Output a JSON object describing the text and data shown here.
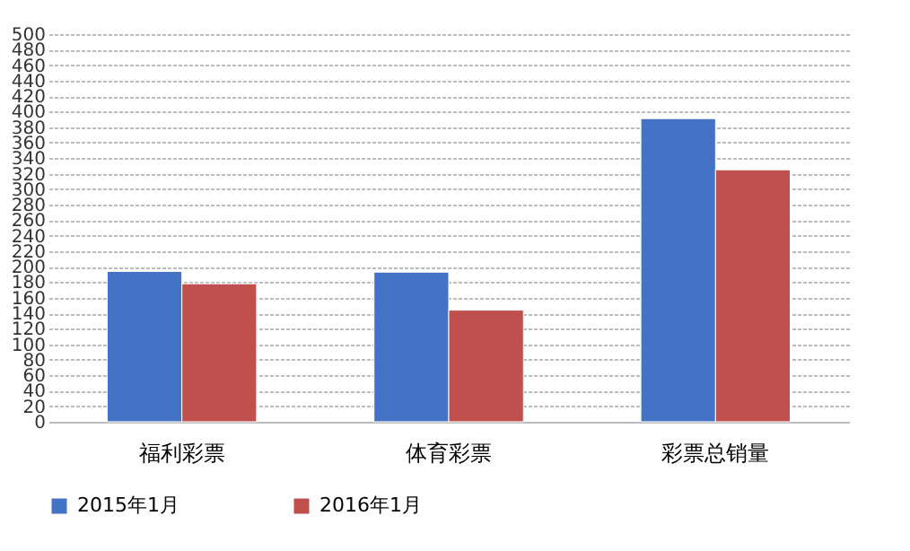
{
  "chart_data": {
    "type": "bar",
    "categories": [
      "福利彩票",
      "体育彩票",
      "彩票总销量"
    ],
    "series": [
      {
        "name": "2015年1月",
        "color": "#4472c4",
        "values": [
          194,
          193,
          391
        ]
      },
      {
        "name": "2016年1月",
        "color": "#c0504d",
        "values": [
          178,
          144,
          325
        ]
      }
    ],
    "ylim": [
      0,
      500
    ],
    "yticks": [
      0,
      20,
      40,
      60,
      80,
      100,
      120,
      140,
      160,
      180,
      200,
      220,
      240,
      260,
      280,
      300,
      320,
      340,
      360,
      380,
      400,
      420,
      440,
      460,
      480,
      500
    ],
    "grid": "y",
    "legend": "bottom"
  }
}
